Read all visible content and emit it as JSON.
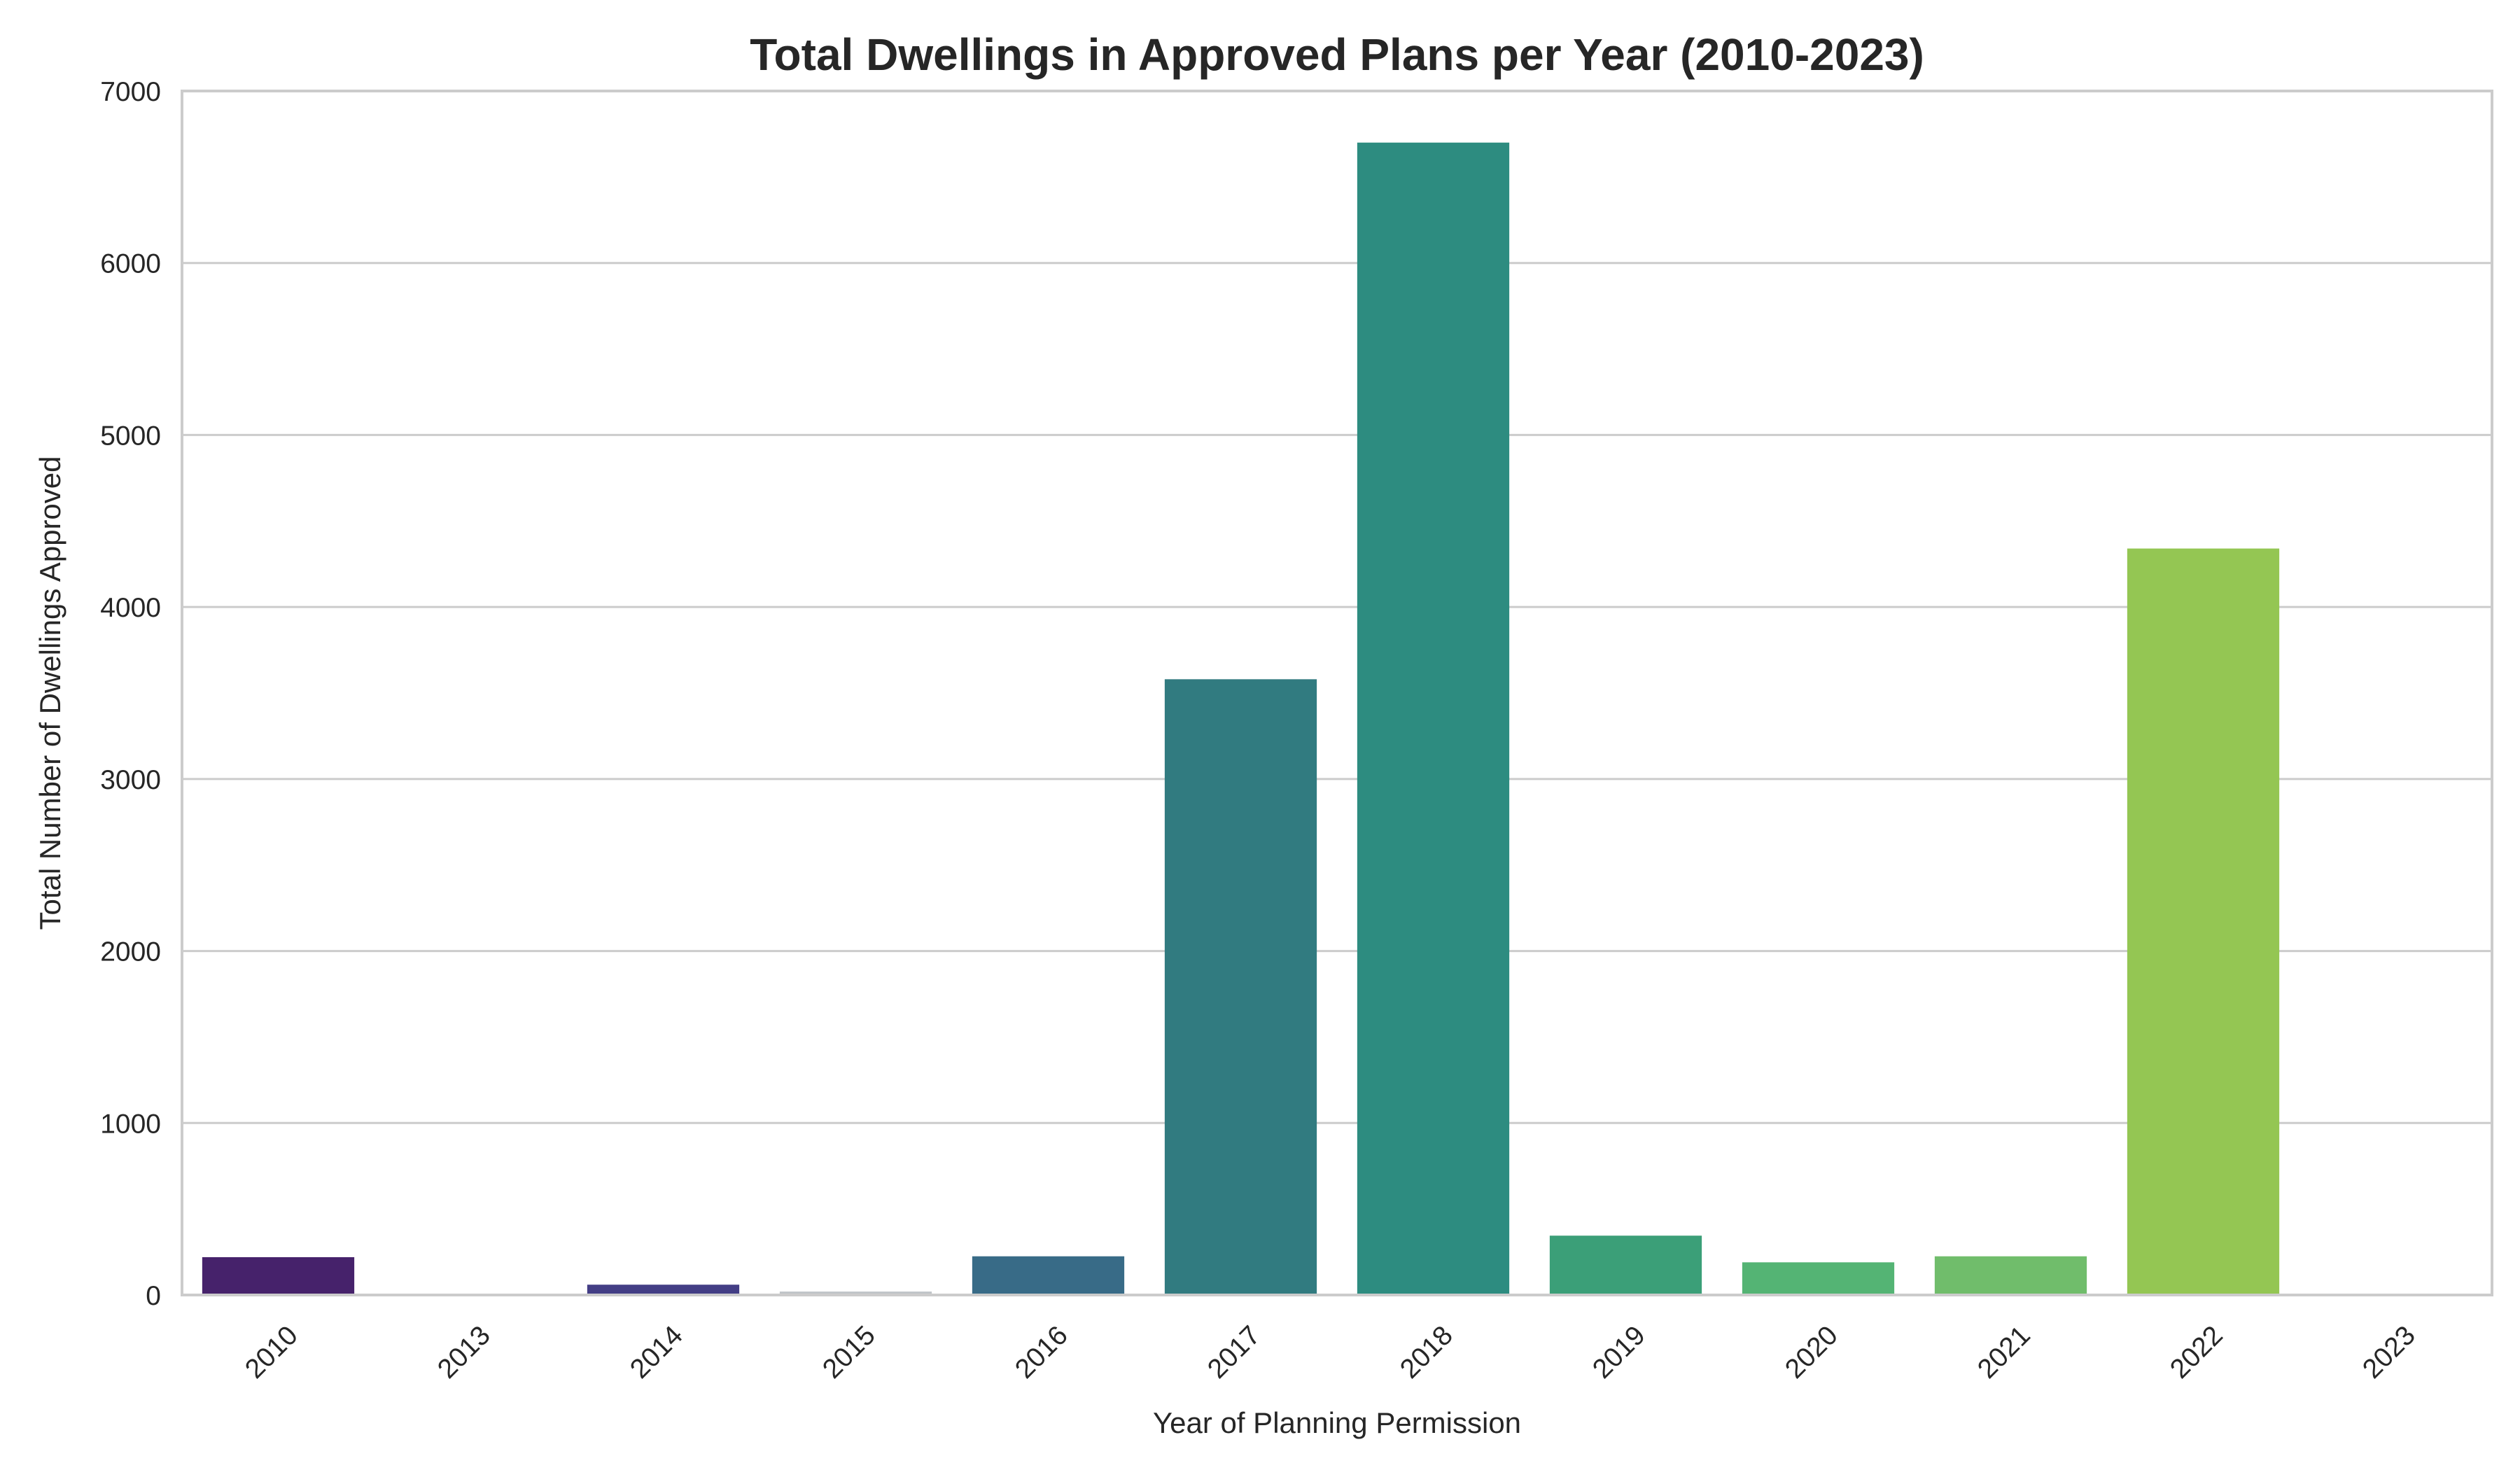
{
  "chart_data": {
    "type": "bar",
    "title": "Total Dwellings in Approved Plans per Year (2010-2023)",
    "xlabel": "Year of Planning Permission",
    "ylabel": "Total Number of Dwellings Approved",
    "categories": [
      "2010",
      "2013",
      "2014",
      "2015",
      "2016",
      "2017",
      "2018",
      "2019",
      "2020",
      "2021",
      "2022",
      "2023"
    ],
    "values": [
      220,
      5,
      60,
      20,
      225,
      3580,
      6700,
      345,
      190,
      225,
      4340,
      5
    ],
    "colors": [
      "#46226b",
      "#482f79",
      "#433e85",
      "#c0c4c8",
      "#386b87",
      "#317b80",
      "#2d8c80",
      "#3b9f78",
      "#54b474",
      "#70bd6b",
      "#94c653",
      "#c0d23a"
    ],
    "ylim": [
      0,
      7000
    ],
    "yticks": [
      0,
      1000,
      2000,
      3000,
      4000,
      5000,
      6000,
      7000
    ],
    "grid": true,
    "legend": "none"
  }
}
